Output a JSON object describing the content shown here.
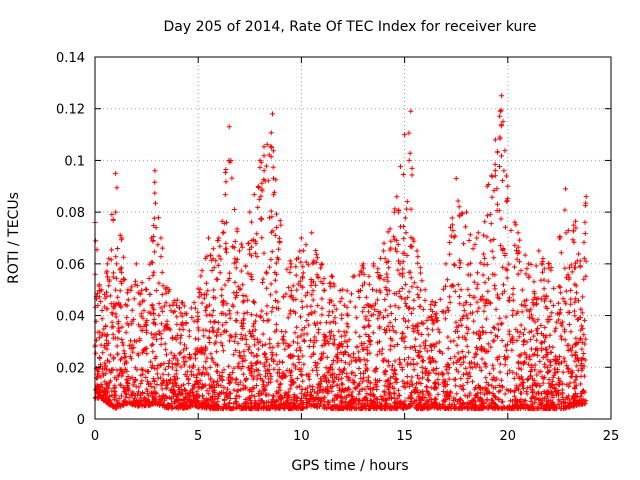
{
  "chart_data": {
    "type": "scatter",
    "title": "Day 205 of 2014, Rate Of TEC Index for receiver kure",
    "xlabel": "GPS time / hours",
    "ylabel": "ROTI / TECUs",
    "xlim": [
      0,
      25
    ],
    "ylim": [
      0,
      0.14
    ],
    "xticks": [
      0,
      5,
      10,
      15,
      20,
      25
    ],
    "yticks": [
      0,
      0.02,
      0.04,
      0.06,
      0.08,
      0.1,
      0.12,
      0.14
    ],
    "xtick_labels": [
      "0",
      "5",
      "10",
      "15",
      "20",
      "25"
    ],
    "ytick_labels": [
      "0",
      "0.02",
      "0.04",
      "0.06",
      "0.08",
      "0.1",
      "0.12",
      "0.14"
    ],
    "grid": true,
    "marker": "plus",
    "color": "#ff0000",
    "x_data_extent": [
      0,
      23.8
    ],
    "envelope": {
      "x": [
        0,
        0.3,
        0.6,
        1.0,
        1.3,
        1.6,
        2.0,
        2.5,
        2.9,
        3.2,
        3.6,
        4.2,
        4.8,
        5.5,
        6.0,
        6.5,
        7.0,
        7.5,
        8.0,
        8.6,
        9.0,
        9.5,
        10.0,
        10.5,
        11.0,
        11.5,
        12.0,
        12.5,
        13.0,
        13.5,
        14.0,
        14.5,
        15.0,
        15.3,
        15.6,
        16.0,
        16.5,
        17.0,
        17.5,
        18.0,
        18.5,
        19.0,
        19.4,
        19.7,
        20.0,
        20.5,
        21.0,
        21.5,
        22.0,
        22.5,
        22.8,
        23.2,
        23.8
      ],
      "ymax": [
        0.076,
        0.05,
        0.06,
        0.095,
        0.07,
        0.05,
        0.06,
        0.05,
        0.096,
        0.07,
        0.05,
        0.045,
        0.045,
        0.07,
        0.07,
        0.113,
        0.065,
        0.08,
        0.1,
        0.118,
        0.075,
        0.06,
        0.07,
        0.072,
        0.06,
        0.055,
        0.05,
        0.055,
        0.06,
        0.06,
        0.068,
        0.08,
        0.11,
        0.119,
        0.065,
        0.05,
        0.045,
        0.06,
        0.093,
        0.08,
        0.07,
        0.09,
        0.108,
        0.125,
        0.09,
        0.072,
        0.06,
        0.065,
        0.06,
        0.07,
        0.089,
        0.075,
        0.086
      ],
      "ymin": [
        0.008,
        0.008,
        0.006,
        0.004,
        0.005,
        0.006,
        0.005,
        0.005,
        0.006,
        0.005,
        0.004,
        0.004,
        0.005,
        0.004,
        0.004,
        0.004,
        0.004,
        0.004,
        0.004,
        0.004,
        0.004,
        0.004,
        0.004,
        0.005,
        0.004,
        0.004,
        0.004,
        0.004,
        0.004,
        0.004,
        0.004,
        0.004,
        0.004,
        0.005,
        0.004,
        0.004,
        0.004,
        0.004,
        0.004,
        0.004,
        0.004,
        0.004,
        0.004,
        0.004,
        0.004,
        0.004,
        0.004,
        0.004,
        0.004,
        0.004,
        0.004,
        0.005,
        0.006
      ]
    }
  }
}
